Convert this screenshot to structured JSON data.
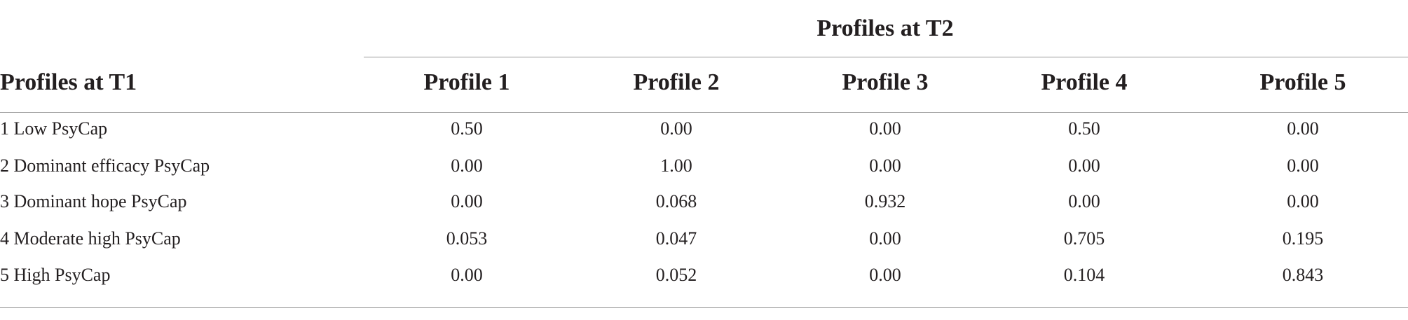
{
  "table": {
    "spanner": "Profiles at T2",
    "columns": [
      "Profiles at T1",
      "Profile 1",
      "Profile 2",
      "Profile 3",
      "Profile 4",
      "Profile 5"
    ],
    "rows": [
      [
        "1 Low PsyCap",
        "0.50",
        "0.00",
        "0.00",
        "0.50",
        "0.00"
      ],
      [
        "2 Dominant efficacy PsyCap",
        "0.00",
        "1.00",
        "0.00",
        "0.00",
        "0.00"
      ],
      [
        "3 Dominant hope PsyCap",
        "0.00",
        "0.068",
        "0.932",
        "0.00",
        "0.00"
      ],
      [
        "4 Moderate high PsyCap",
        "0.053",
        "0.047",
        "0.00",
        "0.705",
        "0.195"
      ],
      [
        "5 High PsyCap",
        "0.00",
        "0.052",
        "0.00",
        "0.104",
        "0.843"
      ]
    ]
  }
}
